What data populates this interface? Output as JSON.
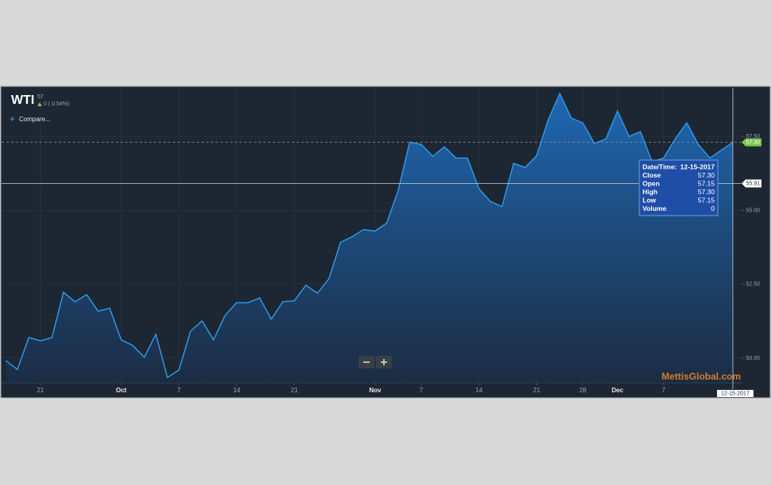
{
  "chart_data": {
    "type": "area",
    "title": "WTI",
    "last": "57",
    "change": "0 ( 0.54%)",
    "compare_label": "Compare...",
    "watermark": "MettisGlobal.com",
    "categories": [
      "09-18-2017",
      "09-19-2017",
      "09-20-2017",
      "09-21-2017",
      "09-22-2017",
      "09-25-2017",
      "09-26-2017",
      "09-27-2017",
      "09-28-2017",
      "09-29-2017",
      "10-02-2017",
      "10-03-2017",
      "10-04-2017",
      "10-05-2017",
      "10-06-2017",
      "10-09-2017",
      "10-10-2017",
      "10-11-2017",
      "10-12-2017",
      "10-13-2017",
      "10-16-2017",
      "10-17-2017",
      "10-18-2017",
      "10-19-2017",
      "10-20-2017",
      "10-23-2017",
      "10-24-2017",
      "10-25-2017",
      "10-26-2017",
      "10-27-2017",
      "10-30-2017",
      "10-31-2017",
      "11-01-2017",
      "11-02-2017",
      "11-03-2017",
      "11-06-2017",
      "11-07-2017",
      "11-08-2017",
      "11-09-2017",
      "11-10-2017",
      "11-13-2017",
      "11-14-2017",
      "11-15-2017",
      "11-16-2017",
      "11-17-2017",
      "11-20-2017",
      "11-21-2017",
      "11-22-2017",
      "11-24-2017",
      "11-27-2017",
      "11-28-2017",
      "11-29-2017",
      "11-30-2017",
      "12-01-2017",
      "12-04-2017",
      "12-05-2017",
      "12-06-2017",
      "12-07-2017",
      "12-08-2017",
      "12-11-2017",
      "12-12-2017",
      "12-13-2017",
      "12-14-2017",
      "12-15-2017"
    ],
    "series": [
      {
        "color": "#2e9cf0",
        "values": [
          49.92,
          49.62,
          50.7,
          50.59,
          50.7,
          52.23,
          51.91,
          52.15,
          51.59,
          51.69,
          50.62,
          50.43,
          50.03,
          50.81,
          49.35,
          49.6,
          50.91,
          51.26,
          50.62,
          51.45,
          51.88,
          51.88,
          52.04,
          51.32,
          51.91,
          51.94,
          52.47,
          52.2,
          52.69,
          53.92,
          54.11,
          54.35,
          54.3,
          54.57,
          55.67,
          57.31,
          57.23,
          56.83,
          57.15,
          56.77,
          56.77,
          55.73,
          55.3,
          55.13,
          56.59,
          56.45,
          56.85,
          58.06,
          58.95,
          58.12,
          57.96,
          57.26,
          57.42,
          58.36,
          57.5,
          57.66,
          56.64,
          56.77,
          57.42,
          57.96,
          57.23,
          56.77,
          57.04,
          57.3
        ]
      }
    ],
    "ylim": [
      49.17,
      59.14
    ],
    "yticks": [
      {
        "value": 50,
        "label": "50.00"
      },
      {
        "value": 52.5,
        "label": "52.50"
      },
      {
        "value": 55,
        "label": "55.00"
      },
      {
        "value": 57.5,
        "label": "57.50"
      }
    ],
    "xticks": [
      {
        "value": "09-21-2017",
        "label": "21"
      },
      {
        "value": "10-01-2017",
        "label": "Oct"
      },
      {
        "value": "10-07-2017",
        "label": "7"
      },
      {
        "value": "10-14-2017",
        "label": "14"
      },
      {
        "value": "10-21-2017",
        "label": "21"
      },
      {
        "value": "11-01-2017",
        "label": "Nov"
      },
      {
        "value": "11-07-2017",
        "label": "7"
      },
      {
        "value": "11-14-2017",
        "label": "14"
      },
      {
        "value": "11-21-2017",
        "label": "21"
      },
      {
        "value": "11-28-2017",
        "label": "28"
      },
      {
        "value": "12-01-2017",
        "label": "Dec"
      },
      {
        "value": "12-07-2017",
        "label": "7"
      }
    ],
    "grid": true,
    "last_price": {
      "value": 57.3,
      "label": "57.30"
    },
    "crosshair": {
      "value": 55.91,
      "label": "55.91"
    },
    "tooltip": {
      "date_label": "Date/Time:",
      "date": "12-15-2017",
      "rows": [
        {
          "label": "Close",
          "value": "57.30"
        },
        {
          "label": "Open",
          "value": "57.15"
        },
        {
          "label": "High",
          "value": "57.30"
        },
        {
          "label": "Low",
          "value": "57.15"
        },
        {
          "label": "Volume",
          "value": "0"
        }
      ]
    }
  }
}
